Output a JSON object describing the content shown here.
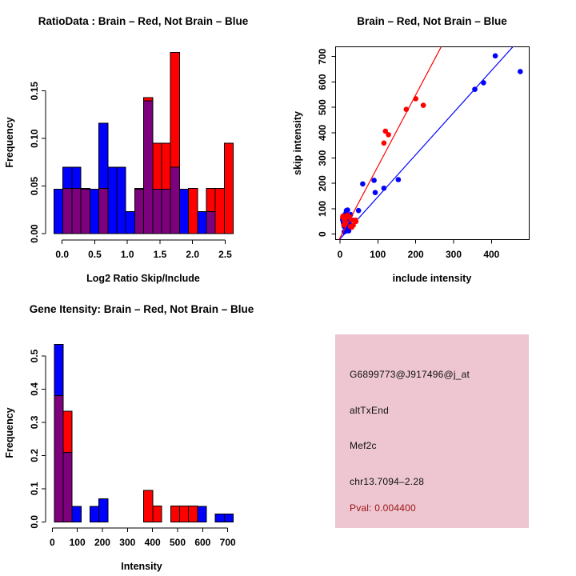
{
  "page": {
    "background": "#ffffff"
  },
  "colors": {
    "red": "#ff0000",
    "blue": "#0000ff",
    "overlap_purple": "#7d007d",
    "axis_black": "#000000",
    "panel_pink": "#edc6d1",
    "pval_dark_red": "#9a1212"
  },
  "chart_data": [
    {
      "id": "ratio_hist",
      "type": "bar",
      "panel": "top-left",
      "title": "RatioData : Brain – Red, Not Brain – Blue",
      "xlabel": "Log2 Ratio Skip/Include",
      "ylabel": "Frequency",
      "bin_start": -0.125,
      "bin_width": 0.1375,
      "x_tick_labels": [
        "0.0",
        "0.5",
        "1.0",
        "1.5",
        "2.0",
        "2.5"
      ],
      "x_tick_values": [
        0,
        0.5,
        1,
        1.5,
        2,
        2.5
      ],
      "y_tick_labels": [
        "0.00",
        "0.05",
        "0.10",
        "0.15"
      ],
      "y_tick_values": [
        0,
        0.05,
        0.1,
        0.15
      ],
      "ylim": [
        0,
        0.19
      ],
      "legend": "overlap of red and blue histograms renders purple",
      "series": [
        {
          "name": "Not Brain",
          "color": "blue",
          "total": 43,
          "counts": [
            2,
            3,
            3,
            2,
            2,
            5,
            3,
            3,
            1,
            2,
            6,
            2,
            2,
            3,
            2,
            0,
            1,
            1,
            0,
            0
          ]
        },
        {
          "name": "Brain",
          "color": "red",
          "total": 21,
          "counts": [
            0,
            1,
            1,
            1,
            0,
            1,
            0,
            0,
            0,
            1,
            3,
            2,
            2,
            4,
            0,
            1,
            0,
            1,
            1,
            2
          ]
        }
      ]
    },
    {
      "id": "intensity_scatter",
      "type": "scatter",
      "panel": "top-right",
      "title": "Brain – Red, Not Brain – Blue",
      "xlabel": "include intensity",
      "ylabel": "skip intensity",
      "xlim": [
        -12,
        500
      ],
      "ylim": [
        -21,
        738
      ],
      "x_tick_labels": [
        "0",
        "100",
        "200",
        "300",
        "400"
      ],
      "x_tick_values": [
        0,
        100,
        200,
        300,
        400
      ],
      "y_tick_labels": [
        "0",
        "100",
        "200",
        "300",
        "400",
        "500",
        "600",
        "700"
      ],
      "y_tick_values": [
        0,
        100,
        200,
        300,
        400,
        500,
        600,
        700
      ],
      "series": [
        {
          "name": "Not Brain",
          "color": "blue",
          "fit_line": {
            "slope": 1.66,
            "intercept": -19
          },
          "points": [
            [
              410,
              703
            ],
            [
              476,
              641
            ],
            [
              379,
              597
            ],
            [
              356,
              571
            ],
            [
              154,
              215
            ],
            [
              90,
              212
            ],
            [
              116,
              181
            ],
            [
              93,
              164
            ],
            [
              60,
              198
            ],
            [
              49,
              93
            ],
            [
              17,
              93
            ],
            [
              11,
              74
            ],
            [
              21,
              66
            ],
            [
              7,
              56
            ],
            [
              18,
              51
            ],
            [
              25,
              40
            ],
            [
              11,
              30
            ],
            [
              18,
              19
            ],
            [
              11,
              9
            ],
            [
              28,
              77
            ],
            [
              15,
              12
            ],
            [
              22,
              24
            ],
            [
              20,
              95
            ],
            [
              13,
              37
            ],
            [
              24,
              57
            ],
            [
              9,
              44
            ],
            [
              16,
              84
            ],
            [
              23,
              13
            ]
          ]
        },
        {
          "name": "Brain",
          "color": "red",
          "fit_line": {
            "slope": 2.82,
            "intercept": -15
          },
          "points": [
            [
              200,
              534
            ],
            [
              220,
              508
            ],
            [
              175,
              492
            ],
            [
              120,
              406
            ],
            [
              128,
              392
            ],
            [
              116,
              359
            ],
            [
              8,
              71
            ],
            [
              12,
              55
            ],
            [
              14,
              61
            ],
            [
              7,
              66
            ],
            [
              32,
              56
            ],
            [
              42,
              50
            ],
            [
              28,
              30
            ],
            [
              35,
              35
            ],
            [
              41,
              55
            ],
            [
              31,
              27
            ],
            [
              20,
              75
            ],
            [
              16,
              44
            ],
            [
              10,
              36
            ],
            [
              24,
              68
            ]
          ]
        }
      ]
    },
    {
      "id": "gene_hist",
      "type": "bar",
      "panel": "bottom-left",
      "title": "Gene Itensity: Brain – Red, Not Brain – Blue",
      "xlabel": "Intensity",
      "ylabel": "Frequency",
      "bin_start": 8,
      "bin_width": 35.7,
      "x_tick_labels": [
        "0",
        "100",
        "200",
        "300",
        "400",
        "500",
        "600",
        "700"
      ],
      "x_tick_values": [
        0,
        100,
        200,
        300,
        400,
        500,
        600,
        700
      ],
      "y_tick_labels": [
        "0.0",
        "0.1",
        "0.2",
        "0.3",
        "0.4",
        "0.5"
      ],
      "y_tick_values": [
        0,
        0.1,
        0.2,
        0.3,
        0.4,
        0.5
      ],
      "ylim": [
        0,
        0.54
      ],
      "legend": "overlap of red and blue histograms renders purple",
      "series": [
        {
          "name": "Not Brain",
          "color": "blue",
          "total": 43,
          "counts": [
            23,
            9,
            2,
            0,
            2,
            3,
            0,
            0,
            0,
            0,
            0,
            0,
            0,
            0,
            0,
            0,
            2,
            0,
            1,
            1
          ]
        },
        {
          "name": "Brain",
          "color": "red",
          "total": 21,
          "counts": [
            8,
            7,
            0,
            0,
            0,
            0,
            0,
            0,
            0,
            0,
            2,
            1,
            0,
            1,
            1,
            1,
            0,
            0,
            0,
            0
          ]
        }
      ]
    }
  ],
  "info_panel": {
    "probe_id": "G6899773@J917496@j_at",
    "event_type": "altTxEnd",
    "gene": "Mef2c",
    "location": "chr13.7094–2.28",
    "pval_label": "Pval: 0.004400"
  }
}
